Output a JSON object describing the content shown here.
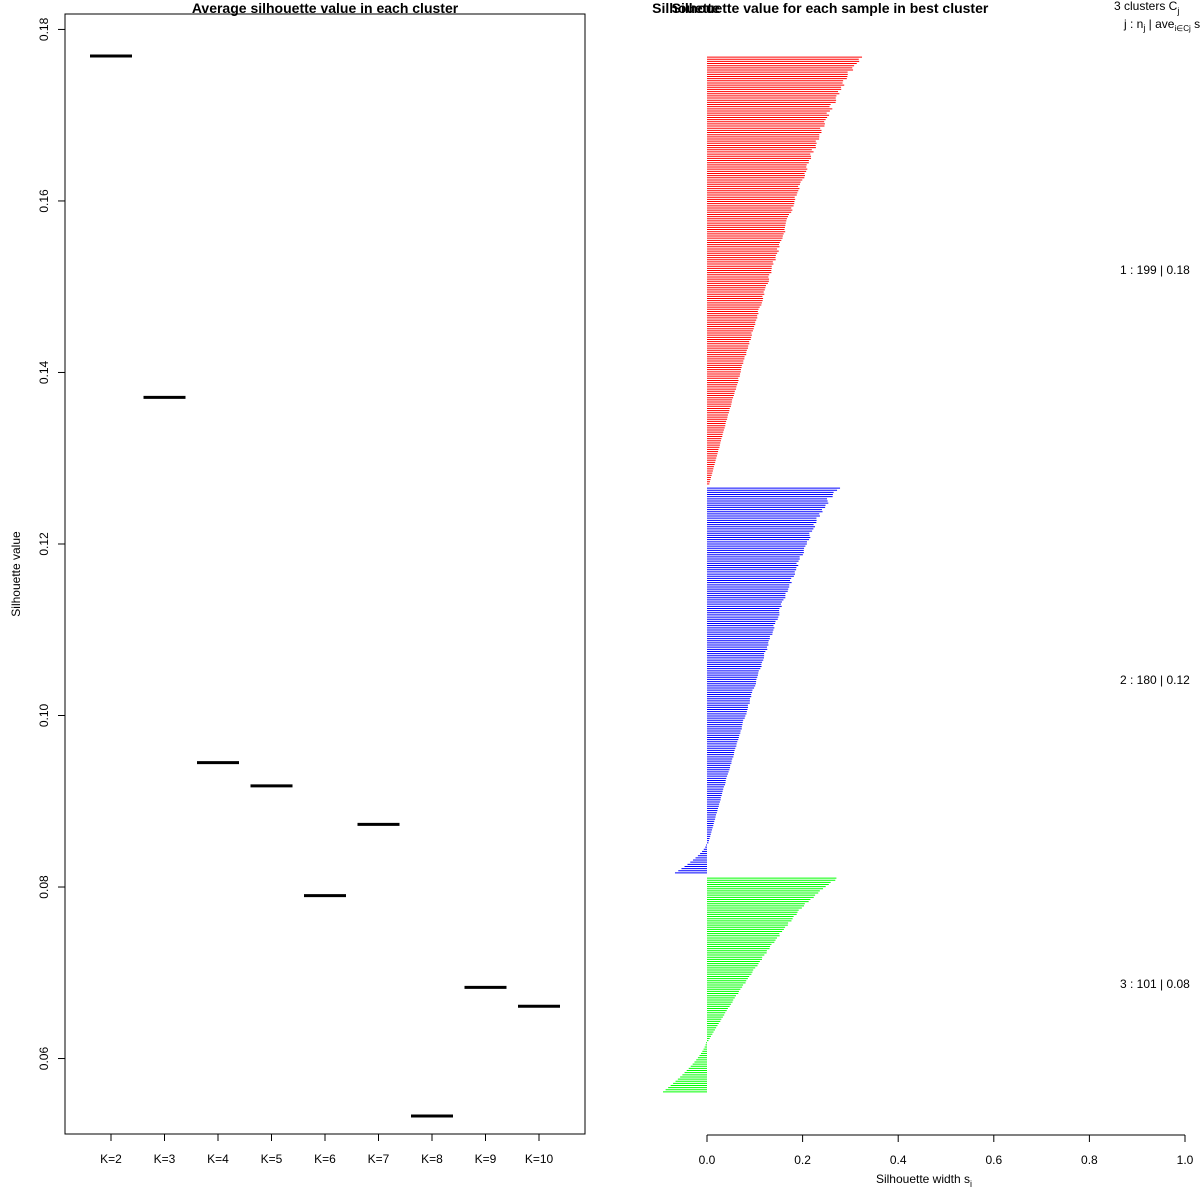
{
  "chart_data": [
    {
      "type": "line",
      "title": "Average silhouette value in each cluster",
      "ylabel": "Silhouette value",
      "xlabel": "",
      "categories": [
        "K=2",
        "K=3",
        "K=4",
        "K=5",
        "K=6",
        "K=7",
        "K=8",
        "K=9",
        "K=10"
      ],
      "values": [
        0.1769,
        0.1371,
        0.0945,
        0.0918,
        0.079,
        0.0873,
        0.0533,
        0.0683,
        0.0661
      ],
      "ylim": [
        0.0512,
        0.1818
      ],
      "yticks": [
        0.06,
        0.08,
        0.1,
        0.12,
        0.14,
        0.16,
        0.18
      ],
      "ytick_labels": [
        "0.06",
        "0.08",
        "0.10",
        "0.12",
        "0.14",
        "0.16",
        "0.18"
      ],
      "grid": false
    },
    {
      "type": "bar",
      "orientation": "horizontal",
      "title": "Silhouette value for each sample in best cluster",
      "overlapping_title": "Silhouette",
      "xlabel": "Silhouette width s",
      "xlabel_subscript": "i",
      "xlim": [
        0.0,
        1.0
      ],
      "xticks": [
        0.0,
        0.2,
        0.4,
        0.6,
        0.8,
        1.0
      ],
      "xtick_labels": [
        "0.0",
        "0.2",
        "0.4",
        "0.6",
        "0.8",
        "1.0"
      ],
      "header": {
        "line1": "3 clusters C",
        "line1_sub": "j",
        "line2_a": "j : n",
        "line2_sub_a": "j",
        "line2_b": " | ave",
        "line2_sub_b": "i∈Cj",
        "line2_c": " s"
      },
      "clusters": [
        {
          "id": 1,
          "n": 199,
          "avg": 0.18,
          "label": "1 :  199  |  0.18",
          "color": "#ff0000",
          "max_width": 0.33,
          "min_width": 0.005,
          "n_negative": 0
        },
        {
          "id": 2,
          "n": 180,
          "avg": 0.12,
          "label": "2 :  180  |  0.12",
          "color": "#0000ff",
          "max_width": 0.28,
          "min_width": -0.065,
          "n_negative": 14
        },
        {
          "id": 3,
          "n": 101,
          "avg": 0.08,
          "label": "3 :  101  |  0.08",
          "color": "#00ff00",
          "max_width": 0.28,
          "min_width": -0.09,
          "n_negative": 24
        }
      ]
    }
  ]
}
